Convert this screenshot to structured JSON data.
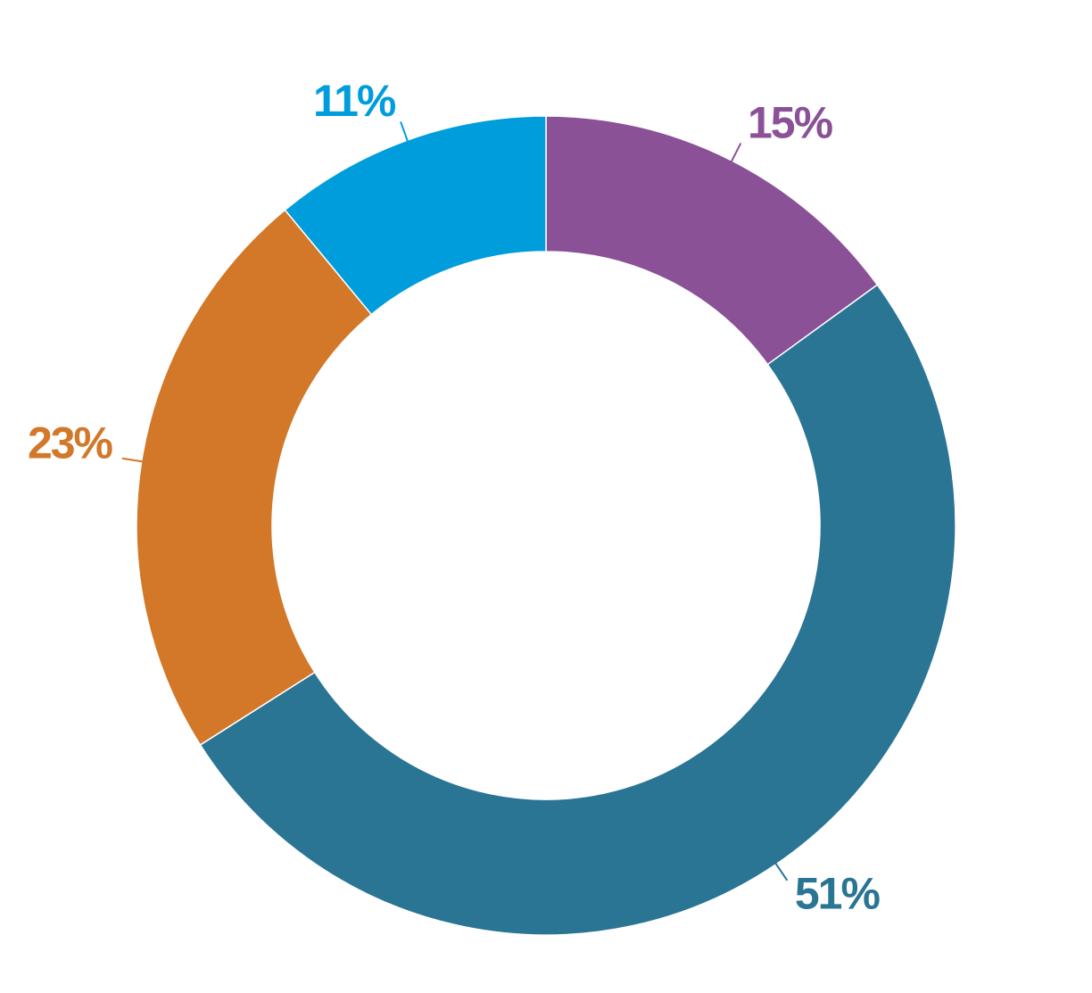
{
  "chart_data": {
    "type": "donut",
    "values": [
      15,
      51,
      23,
      11
    ],
    "value_labels": [
      "15%",
      "51%",
      "23%",
      "11%"
    ],
    "colors": [
      "#8a5197",
      "#2a7494",
      "#d27828",
      "#009ddd"
    ]
  }
}
